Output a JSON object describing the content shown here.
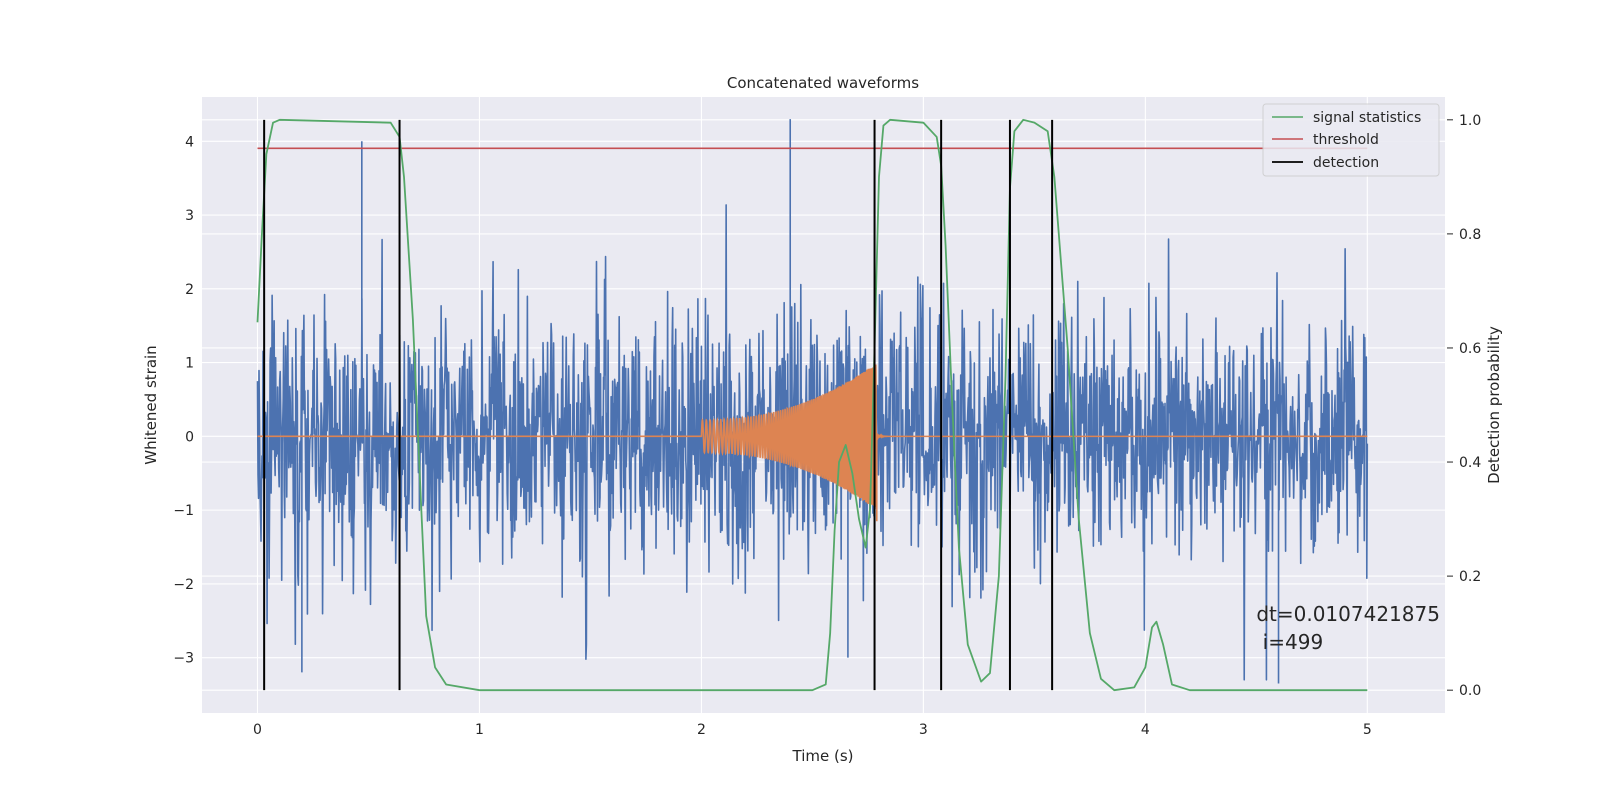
{
  "chart_data": {
    "type": "line",
    "title": "Concatenated waveforms",
    "xlabel": "Time (s)",
    "ylabel_left": "Whitened strain",
    "ylabel_right": "Detection probability",
    "xlim": [
      -0.25,
      5.35
    ],
    "ylim_left": [
      -3.75,
      4.6
    ],
    "ylim_right": [
      -0.04,
      1.04
    ],
    "xticks": [
      0,
      1,
      2,
      3,
      4,
      5
    ],
    "yticks_left": [
      -3,
      -2,
      -1,
      0,
      1,
      2,
      3,
      4
    ],
    "yticks_right": [
      0.0,
      0.2,
      0.4,
      0.6,
      0.8,
      1.0
    ],
    "xtick_labels": [
      "0",
      "1",
      "2",
      "3",
      "4",
      "5"
    ],
    "ytick_labels_left": [
      "−3",
      "−2",
      "−1",
      "0",
      "1",
      "2",
      "3",
      "4"
    ],
    "ytick_labels_right": [
      "0.0",
      "0.2",
      "0.4",
      "0.6",
      "0.8",
      "1.0"
    ],
    "grid": true,
    "legend": {
      "location": "top-right",
      "entries": [
        "signal statistics",
        "threshold",
        "detection"
      ]
    },
    "series": [
      {
        "name": "whitened strain (noise)",
        "axis": "left",
        "color": "#4c72b0",
        "x_range": [
          0,
          5
        ],
        "approx_amplitude": 1.3,
        "peak_spikes": [
          {
            "x": 0.47,
            "y": 4.0
          },
          {
            "x": 2.4,
            "y": 4.3
          },
          {
            "x": 3.39,
            "y": 3.4
          },
          {
            "x": 4.6,
            "y": -3.35
          },
          {
            "x": 0.2,
            "y": -3.2
          },
          {
            "x": 2.66,
            "y": -3.0
          }
        ]
      },
      {
        "name": "injected chirp",
        "axis": "left",
        "color": "#dd8452",
        "x_range": [
          0,
          5
        ],
        "chirp_start": 2.0,
        "chirp_end": 2.79,
        "start_amplitude": 0.22,
        "end_amplitude": 1.0,
        "end_min": -1.15
      },
      {
        "name": "signal statistics",
        "axis": "right",
        "color": "#55a868",
        "points": [
          [
            0,
            0.645
          ],
          [
            0.02,
            0.8
          ],
          [
            0.04,
            0.94
          ],
          [
            0.07,
            0.995
          ],
          [
            0.1,
            1.0
          ],
          [
            0.6,
            0.995
          ],
          [
            0.64,
            0.97
          ],
          [
            0.66,
            0.9
          ],
          [
            0.7,
            0.65
          ],
          [
            0.74,
            0.3
          ],
          [
            0.76,
            0.13
          ],
          [
            0.8,
            0.04
          ],
          [
            0.85,
            0.01
          ],
          [
            1.0,
            0.0
          ],
          [
            2.5,
            0.0
          ],
          [
            2.56,
            0.01
          ],
          [
            2.58,
            0.1
          ],
          [
            2.6,
            0.28
          ],
          [
            2.62,
            0.4
          ],
          [
            2.65,
            0.43
          ],
          [
            2.68,
            0.38
          ],
          [
            2.71,
            0.3
          ],
          [
            2.74,
            0.25
          ],
          [
            2.76,
            0.32
          ],
          [
            2.78,
            0.6
          ],
          [
            2.8,
            0.9
          ],
          [
            2.82,
            0.99
          ],
          [
            2.85,
            1.0
          ],
          [
            3.0,
            0.995
          ],
          [
            3.06,
            0.97
          ],
          [
            3.08,
            0.92
          ],
          [
            3.1,
            0.78
          ],
          [
            3.13,
            0.5
          ],
          [
            3.16,
            0.25
          ],
          [
            3.2,
            0.08
          ],
          [
            3.26,
            0.015
          ],
          [
            3.3,
            0.03
          ],
          [
            3.34,
            0.2
          ],
          [
            3.37,
            0.55
          ],
          [
            3.39,
            0.88
          ],
          [
            3.41,
            0.98
          ],
          [
            3.45,
            1.0
          ],
          [
            3.5,
            0.995
          ],
          [
            3.56,
            0.98
          ],
          [
            3.59,
            0.9
          ],
          [
            3.62,
            0.75
          ],
          [
            3.65,
            0.6
          ],
          [
            3.7,
            0.3
          ],
          [
            3.75,
            0.1
          ],
          [
            3.8,
            0.02
          ],
          [
            3.86,
            0.0
          ],
          [
            3.95,
            0.005
          ],
          [
            4.0,
            0.04
          ],
          [
            4.03,
            0.11
          ],
          [
            4.05,
            0.12
          ],
          [
            4.08,
            0.08
          ],
          [
            4.12,
            0.01
          ],
          [
            4.2,
            0.0
          ],
          [
            5.0,
            0.0
          ]
        ]
      },
      {
        "name": "threshold",
        "axis": "right",
        "color": "#c44e52",
        "x": [
          0,
          5
        ],
        "value": 0.95
      },
      {
        "name": "detection",
        "axis": "right",
        "color": "#000000",
        "x": [
          0.03,
          0.64,
          2.78,
          3.08,
          3.39,
          3.58
        ],
        "y_range": [
          0,
          1.0
        ]
      }
    ],
    "annotation": {
      "line1": "dt=0.0107421875",
      "line2": " i=499",
      "x": 4.5,
      "y": -2.5
    }
  }
}
